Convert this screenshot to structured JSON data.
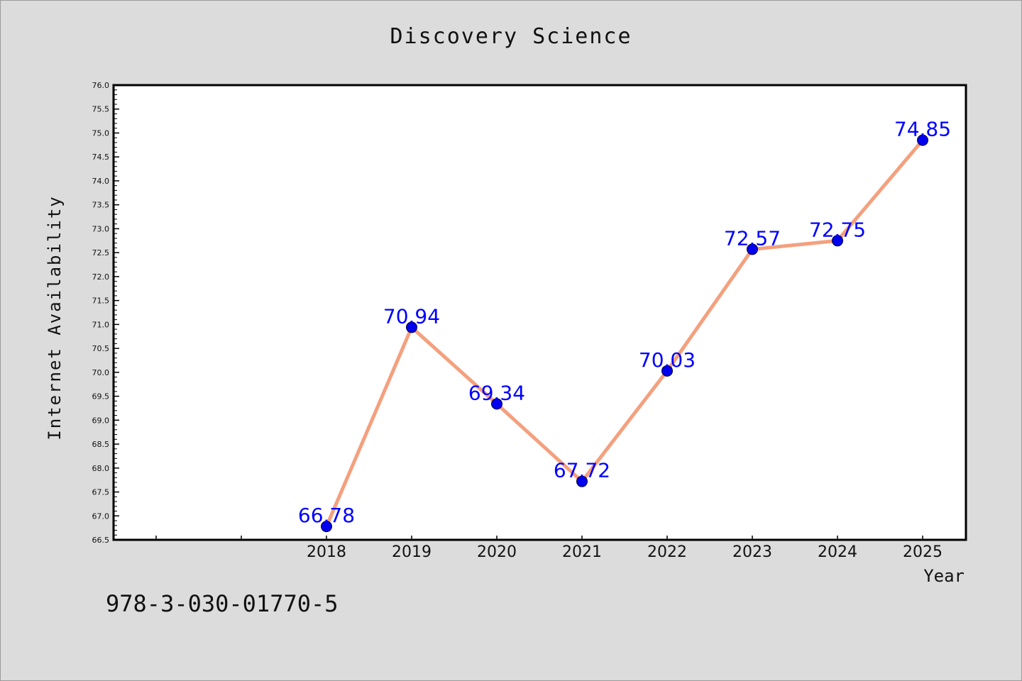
{
  "chart_data": {
    "type": "line",
    "title": "Discovery Science",
    "xlabel": "Year",
    "ylabel": "Internet Availability",
    "categories": [
      "2018",
      "2019",
      "2020",
      "2021",
      "2022",
      "2023",
      "2024",
      "2025"
    ],
    "series": [
      {
        "values": [
          66.78,
          70.94,
          69.34,
          67.72,
          70.03,
          72.57,
          72.75,
          74.85
        ],
        "data_labels": [
          "66.78",
          "70.94",
          "69.34",
          "67.72",
          "70.03",
          "72.57",
          "72.75",
          "74.85"
        ],
        "line_color": "#f4a07e",
        "marker_color": "#0000ee",
        "label_color": "#0000ff"
      }
    ],
    "ylim": [
      66.5,
      76.0
    ],
    "y_ticks": [
      "66.5",
      "67.0",
      "67.5",
      "68.0",
      "68.5",
      "69.0",
      "69.5",
      "70.0",
      "70.5",
      "71.0",
      "71.5",
      "72.0",
      "72.5",
      "73.0",
      "73.5",
      "74.0",
      "74.5",
      "75.0",
      "75.5",
      "76.0"
    ],
    "grid": false,
    "legend": "none"
  },
  "footer": {
    "code": "978-3-030-01770-5"
  },
  "colors": {
    "background": "#dcdcdc",
    "plot_background": "#ffffff",
    "axis": "#000000"
  }
}
